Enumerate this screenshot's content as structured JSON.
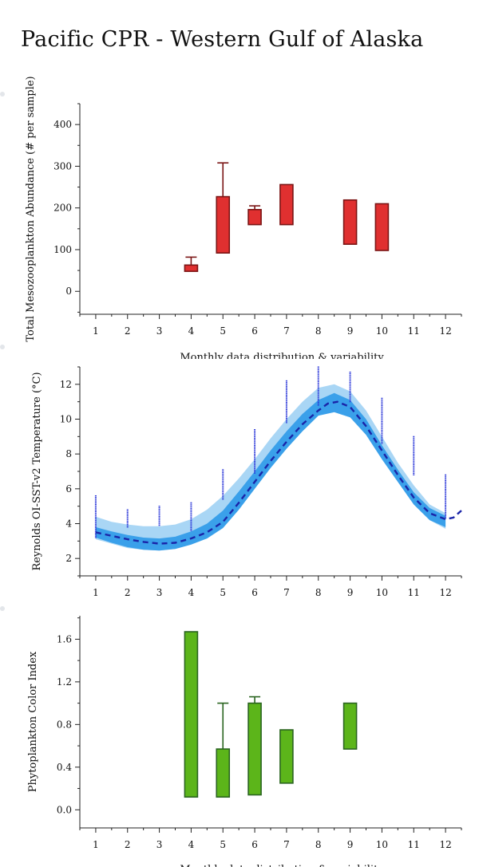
{
  "title": "Pacific CPR - Western Gulf of Alaska",
  "chart_data": [
    {
      "type": "box",
      "title": "",
      "ylabel": "Total Mesozooplankton Abundance (# per sample)",
      "xlabel": "Monthly data distribution & variability",
      "xlim": [
        0.5,
        12.5
      ],
      "ylim": [
        -55,
        450
      ],
      "yticks": [
        0,
        100,
        200,
        300,
        400
      ],
      "xticks": [
        1,
        2,
        3,
        4,
        5,
        6,
        7,
        8,
        9,
        10,
        11,
        12
      ],
      "colors": {
        "fill": "#e03030",
        "stroke": "#7a1414"
      },
      "boxes": [
        {
          "month": 4,
          "q1": 48,
          "q3": 63,
          "whisker_high": 82
        },
        {
          "month": 5,
          "q1": 92,
          "q3": 227,
          "whisker_high": 308
        },
        {
          "month": 6,
          "q1": 160,
          "q3": 196,
          "whisker_high": 205
        },
        {
          "month": 7,
          "q1": 160,
          "q3": 256
        },
        {
          "month": 9,
          "q1": 113,
          "q3": 219
        },
        {
          "month": 10,
          "q1": 98,
          "q3": 210
        }
      ]
    },
    {
      "type": "line",
      "title": "",
      "ylabel": "Reynolds OI-SST-v2 Temperature (°C)",
      "xlabel": "",
      "xlim": [
        0.5,
        12.5
      ],
      "ylim": [
        1,
        13
      ],
      "yticks": [
        2,
        4,
        6,
        8,
        10,
        12
      ],
      "xticks": [
        1,
        2,
        3,
        4,
        5,
        6,
        7,
        8,
        9,
        10,
        11,
        12
      ],
      "colors": {
        "outer_band": "#a9d6f5",
        "inner_band": "#3aa0ea",
        "mean": "#1a24a8",
        "points": "#2a36d8"
      },
      "mean_curve": {
        "x": [
          1,
          1.5,
          2,
          2.5,
          3,
          3.5,
          4,
          4.5,
          5,
          5.5,
          6,
          6.5,
          7,
          7.5,
          8,
          8.3,
          8.6,
          9,
          9.5,
          10,
          10.5,
          11,
          11.5,
          12,
          12.25,
          12.5
        ],
        "y": [
          3.5,
          3.3,
          3.1,
          2.95,
          2.85,
          2.9,
          3.15,
          3.5,
          4.1,
          5.2,
          6.4,
          7.6,
          8.7,
          9.7,
          10.5,
          10.9,
          11.0,
          10.7,
          9.6,
          8.2,
          6.8,
          5.5,
          4.6,
          4.25,
          4.35,
          4.75
        ]
      },
      "outer_band": {
        "x": [
          1,
          1.5,
          2,
          2.5,
          3,
          3.5,
          4,
          4.5,
          5,
          5.5,
          6,
          6.5,
          7,
          7.5,
          8,
          8.5,
          9,
          9.5,
          10,
          10.5,
          11,
          11.5,
          12
        ],
        "upper": [
          4.4,
          4.1,
          3.95,
          3.85,
          3.85,
          3.95,
          4.25,
          4.8,
          5.6,
          6.6,
          7.7,
          8.9,
          10.0,
          11.0,
          11.8,
          12.0,
          11.6,
          10.5,
          9.0,
          7.5,
          6.2,
          5.1,
          4.6
        ],
        "lower": [
          3.1,
          2.85,
          2.6,
          2.5,
          2.45,
          2.55,
          2.8,
          3.15,
          3.75,
          4.8,
          6.0,
          7.2,
          8.3,
          9.3,
          10.2,
          10.4,
          10.1,
          9.1,
          7.7,
          6.4,
          5.1,
          4.2,
          3.7
        ]
      },
      "inner_band": {
        "x": [
          1,
          1.5,
          2,
          2.5,
          3,
          3.5,
          4,
          4.5,
          5,
          5.5,
          6,
          6.5,
          7,
          7.5,
          8,
          8.5,
          9,
          9.5,
          10,
          10.5,
          11,
          11.5,
          12
        ],
        "upper": [
          3.8,
          3.55,
          3.35,
          3.2,
          3.15,
          3.25,
          3.55,
          4.0,
          4.75,
          5.85,
          7.0,
          8.2,
          9.3,
          10.3,
          11.1,
          11.5,
          11.1,
          10.0,
          8.5,
          7.1,
          5.8,
          4.9,
          4.45
        ],
        "lower": [
          3.2,
          2.9,
          2.65,
          2.5,
          2.45,
          2.55,
          2.8,
          3.15,
          3.75,
          4.8,
          6.0,
          7.2,
          8.3,
          9.3,
          10.2,
          10.4,
          10.1,
          9.1,
          7.7,
          6.4,
          5.1,
          4.2,
          3.8
        ]
      },
      "observations": [
        {
          "month": 1,
          "min": 3.2,
          "max": 5.6
        },
        {
          "month": 2,
          "min": 3.8,
          "max": 4.8
        },
        {
          "month": 3,
          "min": 3.9,
          "max": 5.0
        },
        {
          "month": 4,
          "min": 3.6,
          "max": 5.2
        },
        {
          "month": 5,
          "min": 5.4,
          "max": 7.1
        },
        {
          "month": 6,
          "min": 6.9,
          "max": 9.4
        },
        {
          "month": 7,
          "min": 9.8,
          "max": 12.2
        },
        {
          "month": 8,
          "min": 10.8,
          "max": 13.0
        },
        {
          "month": 9,
          "min": 11.0,
          "max": 12.7
        },
        {
          "month": 10,
          "min": 8.6,
          "max": 11.2
        },
        {
          "month": 11,
          "min": 6.8,
          "max": 9.0
        },
        {
          "month": 12,
          "min": 4.3,
          "max": 6.8
        }
      ]
    },
    {
      "type": "box",
      "title": "",
      "ylabel": "Phytoplankton Color Index",
      "xlabel": "Monthly data distribution & variability",
      "xlim": [
        0.5,
        12.5
      ],
      "ylim": [
        -0.17,
        1.82
      ],
      "yticks": [
        0.0,
        0.4,
        0.8,
        1.2,
        1.6
      ],
      "ytick_labels": [
        "0.0",
        "0.4",
        "0.8",
        "1.2",
        "1.6"
      ],
      "xticks": [
        1,
        2,
        3,
        4,
        5,
        6,
        7,
        8,
        9,
        10,
        11,
        12
      ],
      "colors": {
        "fill": "#5cb51a",
        "stroke": "#2a6420"
      },
      "boxes": [
        {
          "month": 4,
          "q1": 0.12,
          "q3": 1.67
        },
        {
          "month": 5,
          "q1": 0.12,
          "q3": 0.57,
          "whisker_high": 1.0
        },
        {
          "month": 6,
          "q1": 0.14,
          "q3": 1.0,
          "whisker_high": 1.06
        },
        {
          "month": 7,
          "q1": 0.25,
          "q3": 0.75
        },
        {
          "month": 9,
          "q1": 0.57,
          "q3": 1.0
        }
      ]
    }
  ]
}
